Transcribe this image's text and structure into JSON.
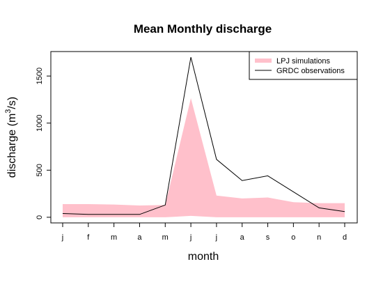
{
  "chart_data": {
    "type": "area",
    "title": "Mean Monthly discharge",
    "xlabel": "month",
    "ylabel": "discharge (m",
    "ylabel_sup": "3",
    "ylabel_tail": "/s)",
    "categories": [
      "j",
      "f",
      "m",
      "a",
      "m",
      "j",
      "j",
      "a",
      "s",
      "o",
      "n",
      "d"
    ],
    "yticks": [
      0,
      500,
      1000,
      1500
    ],
    "ylim": [
      -60,
      1760
    ],
    "grid": false,
    "legend_position": "top-right",
    "series": [
      {
        "name": "LPJ simulations",
        "kind": "band",
        "color": "#ffc0cb",
        "upper": [
          140,
          140,
          135,
          125,
          130,
          1265,
          230,
          200,
          210,
          160,
          150,
          150
        ],
        "lower": [
          0,
          0,
          0,
          0,
          0,
          15,
          0,
          0,
          0,
          0,
          0,
          0
        ]
      },
      {
        "name": "GRDC observations",
        "kind": "line",
        "color": "#000000",
        "values": [
          40,
          30,
          30,
          30,
          130,
          1700,
          615,
          390,
          440,
          270,
          100,
          60
        ]
      }
    ]
  }
}
